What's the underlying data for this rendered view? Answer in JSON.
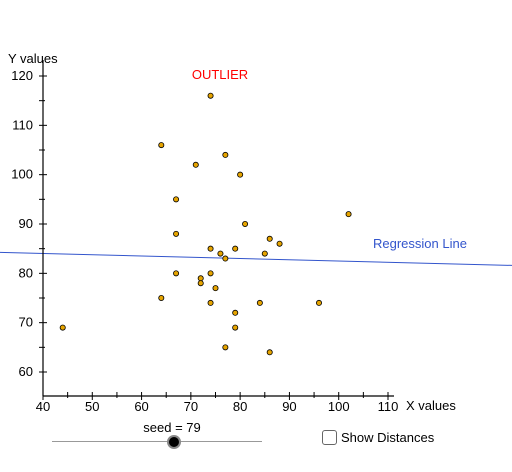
{
  "chart_data": {
    "type": "scatter",
    "ylabel": "Y values",
    "xlabel": "X values",
    "xlim": [
      40,
      110
    ],
    "ylim": [
      55,
      120
    ],
    "x_ticks": [
      40,
      50,
      60,
      70,
      80,
      90,
      100,
      110
    ],
    "y_ticks": [
      60,
      70,
      80,
      90,
      100,
      110,
      120
    ],
    "grid": false,
    "point_color": "#e6a400",
    "points": [
      {
        "x": 44,
        "y": 69
      },
      {
        "x": 64,
        "y": 106
      },
      {
        "x": 64,
        "y": 75
      },
      {
        "x": 67,
        "y": 95
      },
      {
        "x": 67,
        "y": 88
      },
      {
        "x": 67,
        "y": 80
      },
      {
        "x": 71,
        "y": 102
      },
      {
        "x": 72,
        "y": 79
      },
      {
        "x": 72,
        "y": 78
      },
      {
        "x": 74,
        "y": 116
      },
      {
        "x": 74,
        "y": 85
      },
      {
        "x": 74,
        "y": 80
      },
      {
        "x": 74,
        "y": 74
      },
      {
        "x": 75,
        "y": 77
      },
      {
        "x": 76,
        "y": 84
      },
      {
        "x": 77,
        "y": 104
      },
      {
        "x": 77,
        "y": 83
      },
      {
        "x": 77,
        "y": 65
      },
      {
        "x": 79,
        "y": 85
      },
      {
        "x": 79,
        "y": 72
      },
      {
        "x": 79,
        "y": 69
      },
      {
        "x": 80,
        "y": 100
      },
      {
        "x": 81,
        "y": 90
      },
      {
        "x": 84,
        "y": 74
      },
      {
        "x": 85,
        "y": 84
      },
      {
        "x": 86,
        "y": 87
      },
      {
        "x": 86,
        "y": 64
      },
      {
        "x": 88,
        "y": 86
      },
      {
        "x": 96,
        "y": 74
      },
      {
        "x": 102,
        "y": 92
      }
    ],
    "regression_line": {
      "label": "Regression Line",
      "color": "#3355cc",
      "slope": -0.0254,
      "intercept": 85.04
    },
    "annotation": {
      "text": "OUTLIER",
      "color": "#ff0000"
    }
  },
  "controls": {
    "seed_label": "seed = 79",
    "seed_value": 79,
    "seed_fraction": 0.58,
    "show_distances_label": "Show Distances",
    "show_distances_checked": false
  }
}
